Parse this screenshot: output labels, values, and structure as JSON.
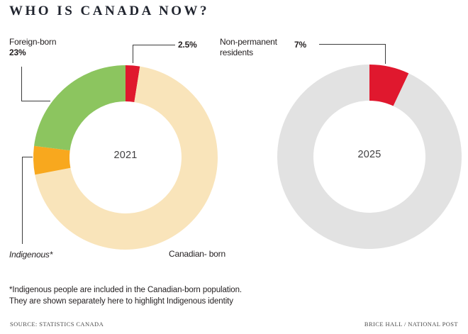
{
  "title": "WHO IS CANADA NOW?",
  "footnote": "*Indigenous people are included in the Canadian-born population.\nThey are shown separately here to highlight Indigenous identity",
  "source": "SOURCE: STATISTICS CANADA",
  "credit": "BRICE HALL / NATIONAL POST",
  "colors": {
    "red": "#e0182e",
    "green": "#8cc55f",
    "orange": "#f8a81e",
    "cream": "#f9e4ba",
    "gray": "#e2e2e2",
    "text": "#231f20",
    "callout_line": "#3c3c3c"
  },
  "chart_data": [
    {
      "type": "pie",
      "donut": true,
      "center_label": "2021",
      "start_angle_deg": 0,
      "direction": "clockwise",
      "segments": [
        {
          "label": "Non-permanent residents",
          "value": "2.5%",
          "numeric_value": 2.5,
          "sweep_pct": 2.5,
          "color": "#e0182e"
        },
        {
          "label": "Canadian- born",
          "value": "74.5%",
          "numeric_value": 74.5,
          "sweep_pct": 69.5,
          "color": "#f9e4ba"
        },
        {
          "label": "Indigenous*",
          "value": "5%",
          "numeric_value": 5,
          "sweep_pct": 5,
          "color": "#f8a81e"
        },
        {
          "label": "Foreign-born",
          "value": "23%",
          "numeric_value": 23,
          "sweep_pct": 23,
          "color": "#8cc55f"
        }
      ]
    },
    {
      "type": "pie",
      "donut": true,
      "center_label": "2025",
      "start_angle_deg": 0,
      "direction": "clockwise",
      "segments": [
        {
          "label": "Non-permanent residents",
          "value": "7%",
          "numeric_value": 7,
          "sweep_pct": 7,
          "color": "#e0182e"
        },
        {
          "label": "",
          "value": "",
          "numeric_value": 93,
          "sweep_pct": 93,
          "color": "#e2e2e2"
        }
      ]
    }
  ]
}
